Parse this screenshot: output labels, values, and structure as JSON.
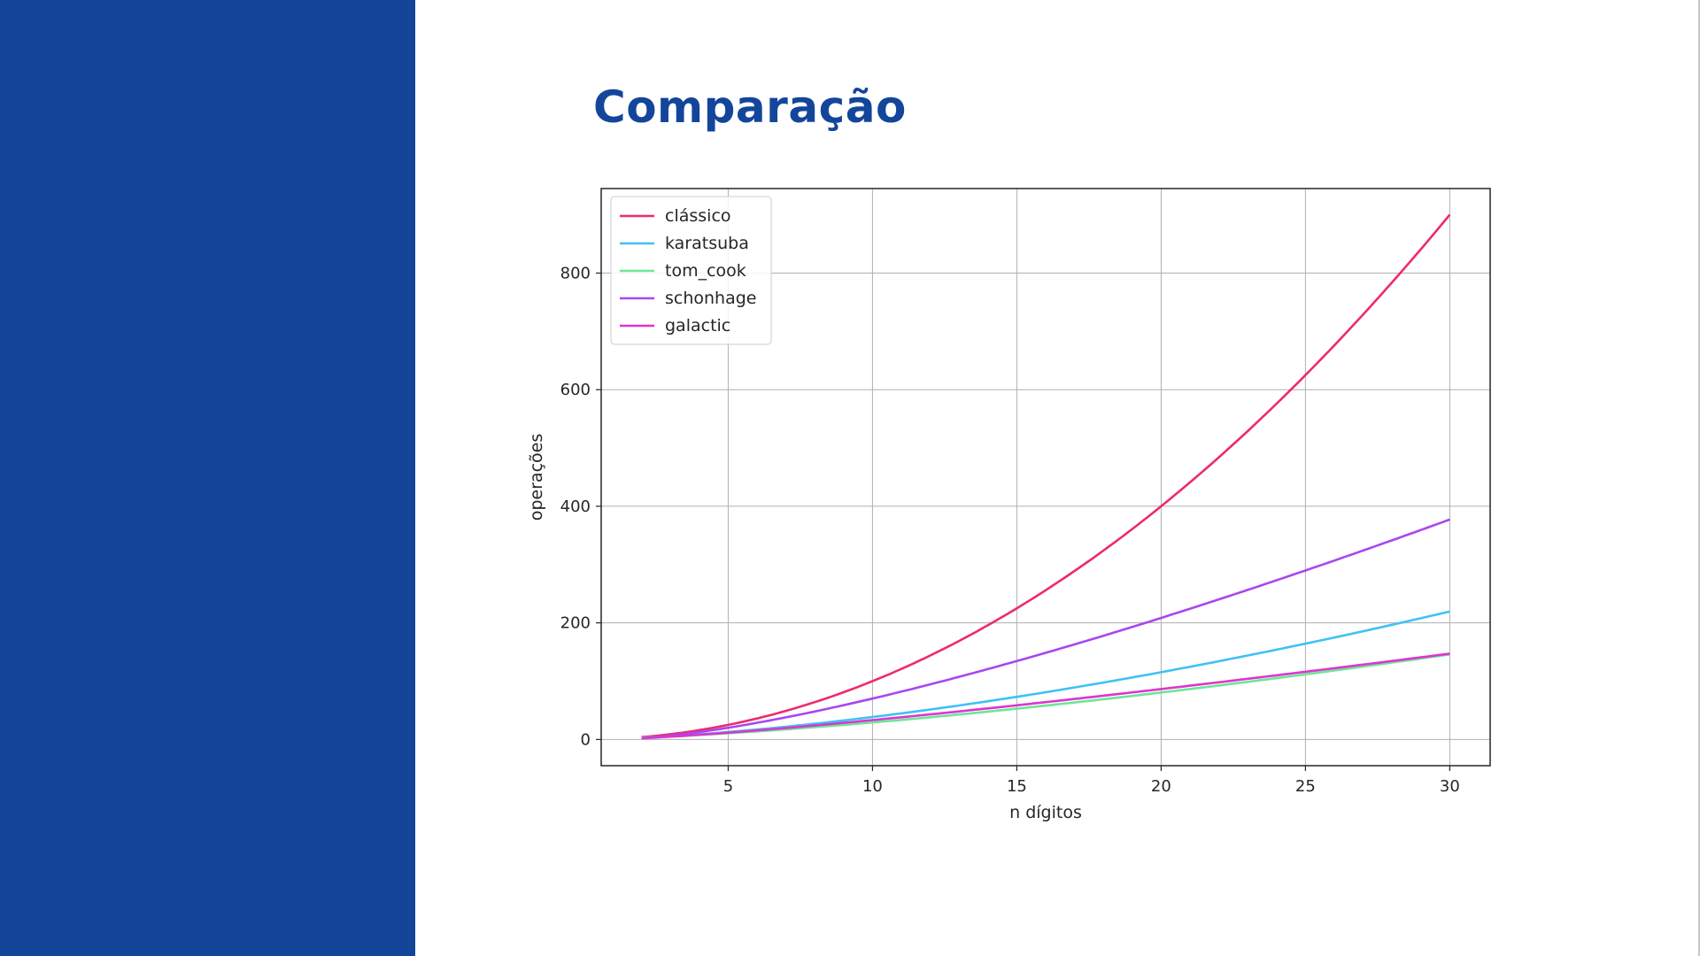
{
  "slide": {
    "title": "Comparação",
    "side_panel_color": "#13469a"
  },
  "chart_data": {
    "type": "line",
    "title": "",
    "xlabel": "n dígitos",
    "ylabel": "operações",
    "xlim": [
      0.6,
      31.4
    ],
    "ylim": [
      -45,
      945
    ],
    "x_ticks": [
      5,
      10,
      15,
      20,
      25,
      30
    ],
    "y_ticks": [
      0,
      200,
      400,
      600,
      800
    ],
    "grid": true,
    "legend_position": "top-left",
    "x": [
      2,
      30
    ],
    "series": [
      {
        "name": "clássico",
        "color": "#ee2a6e",
        "formula": "n^2"
      },
      {
        "name": "karatsuba",
        "color": "#3fc2f3",
        "formula": "n^1.585"
      },
      {
        "name": "tom_cook",
        "color": "#6ee696",
        "formula": "n^1.465"
      },
      {
        "name": "schonhage",
        "color": "#a847ee",
        "formula": "n log n log log n"
      },
      {
        "name": "galactic",
        "color": "#dc35d0",
        "formula": "n log n"
      }
    ]
  }
}
